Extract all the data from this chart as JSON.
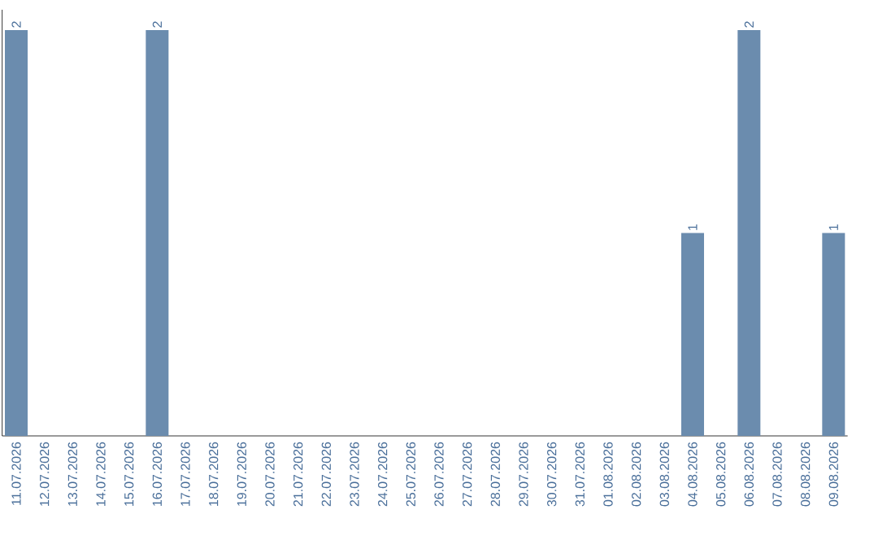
{
  "chart_data": {
    "type": "bar",
    "categories": [
      "11.07.2026",
      "12.07.2026",
      "13.07.2026",
      "14.07.2026",
      "15.07.2026",
      "16.07.2026",
      "17.07.2026",
      "18.07.2026",
      "19.07.2026",
      "20.07.2026",
      "21.07.2026",
      "22.07.2026",
      "23.07.2026",
      "24.07.2026",
      "25.07.2026",
      "26.07.2026",
      "27.07.2026",
      "28.07.2026",
      "29.07.2026",
      "30.07.2026",
      "31.07.2026",
      "01.08.2026",
      "02.08.2026",
      "03.08.2026",
      "04.08.2026",
      "05.08.2026",
      "06.08.2026",
      "07.08.2026",
      "08.08.2026",
      "09.08.2026"
    ],
    "values": [
      2,
      0,
      0,
      0,
      0,
      2,
      0,
      0,
      0,
      0,
      0,
      0,
      0,
      0,
      0,
      0,
      0,
      0,
      0,
      0,
      0,
      0,
      0,
      0,
      1,
      0,
      2,
      0,
      0,
      1
    ],
    "value_labels": [
      "2",
      null,
      null,
      null,
      null,
      "2",
      null,
      null,
      null,
      null,
      null,
      null,
      null,
      null,
      null,
      null,
      null,
      null,
      null,
      null,
      null,
      null,
      null,
      null,
      "1",
      null,
      "2",
      null,
      null,
      "1"
    ],
    "color": "#6b8cae"
  }
}
